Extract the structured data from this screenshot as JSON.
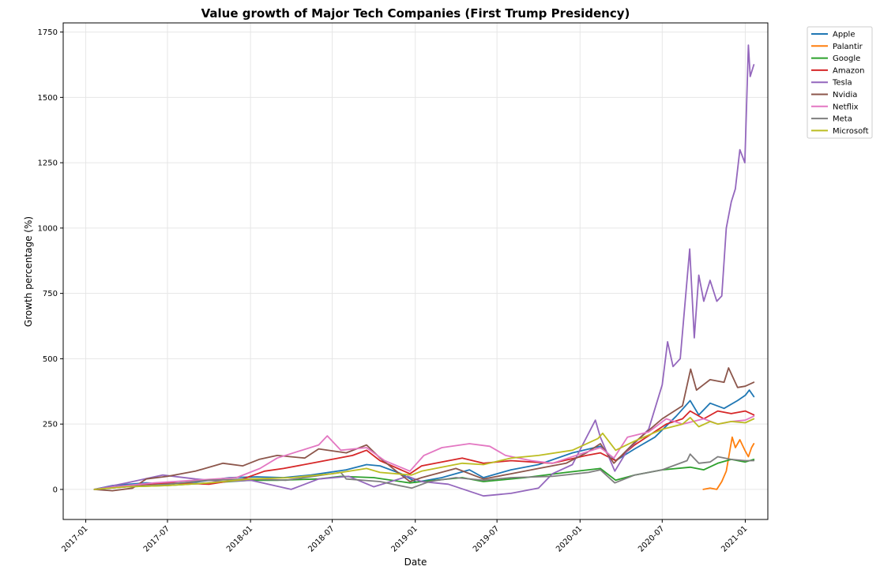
{
  "chart_data": {
    "type": "line",
    "title": "Value growth of Major Tech Companies (First Trump Presidency)",
    "xlabel": "Date",
    "ylabel": "Growth percentage (%)",
    "xlim": [
      "2016-11-12",
      "2021-02-20"
    ],
    "ylim": [
      -115,
      1785
    ],
    "x_ticks": [
      "2017-01",
      "2017-07",
      "2018-01",
      "2018-07",
      "2019-01",
      "2019-07",
      "2020-01",
      "2020-07",
      "2021-01"
    ],
    "y_ticks": [
      0,
      250,
      500,
      750,
      1000,
      1250,
      1500,
      1750
    ],
    "grid": true,
    "legend_position": "outside-top-right",
    "series": [
      {
        "name": "Apple",
        "color": "#1f77b4",
        "points": [
          [
            "2017-01-20",
            0
          ],
          [
            "2017-03-01",
            15
          ],
          [
            "2017-05-15",
            25
          ],
          [
            "2017-07-01",
            22
          ],
          [
            "2017-09-01",
            28
          ],
          [
            "2017-11-15",
            45
          ],
          [
            "2018-01-15",
            48
          ],
          [
            "2018-03-15",
            45
          ],
          [
            "2018-05-15",
            55
          ],
          [
            "2018-08-01",
            75
          ],
          [
            "2018-09-15",
            95
          ],
          [
            "2018-10-15",
            90
          ],
          [
            "2018-12-01",
            60
          ],
          [
            "2019-01-03",
            28
          ],
          [
            "2019-03-01",
            45
          ],
          [
            "2019-05-01",
            75
          ],
          [
            "2019-06-01",
            45
          ],
          [
            "2019-08-01",
            75
          ],
          [
            "2019-10-01",
            95
          ],
          [
            "2019-12-15",
            140
          ],
          [
            "2020-02-15",
            165
          ],
          [
            "2020-03-20",
            110
          ],
          [
            "2020-05-01",
            155
          ],
          [
            "2020-06-15",
            200
          ],
          [
            "2020-08-01",
            280
          ],
          [
            "2020-09-01",
            340
          ],
          [
            "2020-09-20",
            285
          ],
          [
            "2020-10-15",
            330
          ],
          [
            "2020-11-15",
            310
          ],
          [
            "2020-12-15",
            340
          ],
          [
            "2021-01-01",
            360
          ],
          [
            "2021-01-10",
            380
          ],
          [
            "2021-01-20",
            355
          ]
        ]
      },
      {
        "name": "Palantir",
        "color": "#ff7f0e",
        "points": [
          [
            "2020-09-30",
            0
          ],
          [
            "2020-10-15",
            5
          ],
          [
            "2020-10-30",
            0
          ],
          [
            "2020-11-10",
            30
          ],
          [
            "2020-11-20",
            70
          ],
          [
            "2020-11-27",
            140
          ],
          [
            "2020-12-03",
            200
          ],
          [
            "2020-12-10",
            160
          ],
          [
            "2020-12-20",
            190
          ],
          [
            "2020-12-31",
            150
          ],
          [
            "2021-01-08",
            125
          ],
          [
            "2021-01-15",
            160
          ],
          [
            "2021-01-20",
            175
          ]
        ]
      },
      {
        "name": "Google",
        "color": "#2ca02c",
        "points": [
          [
            "2017-01-20",
            0
          ],
          [
            "2017-04-01",
            10
          ],
          [
            "2017-07-01",
            15
          ],
          [
            "2017-10-01",
            25
          ],
          [
            "2018-01-01",
            35
          ],
          [
            "2018-03-01",
            35
          ],
          [
            "2018-06-01",
            40
          ],
          [
            "2018-07-20",
            50
          ],
          [
            "2018-10-01",
            45
          ],
          [
            "2018-12-20",
            25
          ],
          [
            "2019-01-15",
            30
          ],
          [
            "2019-04-15",
            45
          ],
          [
            "2019-06-01",
            30
          ],
          [
            "2019-09-01",
            45
          ],
          [
            "2019-12-01",
            65
          ],
          [
            "2020-02-15",
            80
          ],
          [
            "2020-03-20",
            35
          ],
          [
            "2020-05-01",
            55
          ],
          [
            "2020-07-01",
            75
          ],
          [
            "2020-09-01",
            85
          ],
          [
            "2020-10-01",
            75
          ],
          [
            "2020-11-01",
            100
          ],
          [
            "2020-12-01",
            115
          ],
          [
            "2021-01-01",
            105
          ],
          [
            "2021-01-20",
            115
          ]
        ]
      },
      {
        "name": "Amazon",
        "color": "#d62728",
        "points": [
          [
            "2017-01-20",
            0
          ],
          [
            "2017-04-01",
            15
          ],
          [
            "2017-07-01",
            25
          ],
          [
            "2017-10-01",
            20
          ],
          [
            "2017-12-15",
            40
          ],
          [
            "2018-02-01",
            70
          ],
          [
            "2018-03-15",
            80
          ],
          [
            "2018-06-15",
            110
          ],
          [
            "2018-08-15",
            130
          ],
          [
            "2018-09-15",
            150
          ],
          [
            "2018-10-15",
            110
          ],
          [
            "2018-12-20",
            60
          ],
          [
            "2019-01-15",
            90
          ],
          [
            "2019-04-15",
            120
          ],
          [
            "2019-06-01",
            100
          ],
          [
            "2019-08-01",
            110
          ],
          [
            "2019-11-01",
            100
          ],
          [
            "2020-01-15",
            130
          ],
          [
            "2020-02-15",
            140
          ],
          [
            "2020-03-20",
            110
          ],
          [
            "2020-05-01",
            170
          ],
          [
            "2020-07-10",
            250
          ],
          [
            "2020-08-15",
            270
          ],
          [
            "2020-09-01",
            300
          ],
          [
            "2020-10-01",
            270
          ],
          [
            "2020-11-01",
            300
          ],
          [
            "2020-12-01",
            290
          ],
          [
            "2021-01-01",
            300
          ],
          [
            "2021-01-20",
            285
          ]
        ]
      },
      {
        "name": "Tesla",
        "color": "#9467bd",
        "points": [
          [
            "2017-01-20",
            0
          ],
          [
            "2017-04-01",
            25
          ],
          [
            "2017-06-20",
            55
          ],
          [
            "2017-09-01",
            40
          ],
          [
            "2017-11-01",
            30
          ],
          [
            "2018-01-01",
            35
          ],
          [
            "2018-04-01",
            0
          ],
          [
            "2018-06-01",
            40
          ],
          [
            "2018-08-07",
            50
          ],
          [
            "2018-10-01",
            10
          ],
          [
            "2018-12-15",
            50
          ],
          [
            "2019-01-15",
            30
          ],
          [
            "2019-03-15",
            20
          ],
          [
            "2019-06-01",
            -25
          ],
          [
            "2019-08-01",
            -15
          ],
          [
            "2019-10-01",
            5
          ],
          [
            "2019-11-01",
            60
          ],
          [
            "2019-12-15",
            95
          ],
          [
            "2020-02-04",
            265
          ],
          [
            "2020-02-15",
            200
          ],
          [
            "2020-03-18",
            70
          ],
          [
            "2020-04-15",
            150
          ],
          [
            "2020-06-01",
            230
          ],
          [
            "2020-07-01",
            400
          ],
          [
            "2020-07-13",
            565
          ],
          [
            "2020-07-25",
            470
          ],
          [
            "2020-08-10",
            500
          ],
          [
            "2020-08-31",
            920
          ],
          [
            "2020-09-10",
            580
          ],
          [
            "2020-09-20",
            820
          ],
          [
            "2020-10-01",
            720
          ],
          [
            "2020-10-15",
            800
          ],
          [
            "2020-10-30",
            720
          ],
          [
            "2020-11-10",
            740
          ],
          [
            "2020-11-20",
            1000
          ],
          [
            "2020-12-01",
            1100
          ],
          [
            "2020-12-10",
            1150
          ],
          [
            "2020-12-20",
            1300
          ],
          [
            "2020-12-31",
            1250
          ],
          [
            "2021-01-08",
            1700
          ],
          [
            "2021-01-12",
            1580
          ],
          [
            "2021-01-20",
            1625
          ]
        ]
      },
      {
        "name": "Nvidia",
        "color": "#8c564b",
        "points": [
          [
            "2017-01-20",
            0
          ],
          [
            "2017-03-01",
            -5
          ],
          [
            "2017-04-15",
            5
          ],
          [
            "2017-05-15",
            40
          ],
          [
            "2017-07-01",
            50
          ],
          [
            "2017-09-01",
            70
          ],
          [
            "2017-11-01",
            100
          ],
          [
            "2017-12-15",
            90
          ],
          [
            "2018-01-20",
            115
          ],
          [
            "2018-03-01",
            130
          ],
          [
            "2018-05-01",
            120
          ],
          [
            "2018-06-01",
            155
          ],
          [
            "2018-08-01",
            140
          ],
          [
            "2018-09-15",
            170
          ],
          [
            "2018-10-15",
            120
          ],
          [
            "2018-11-20",
            70
          ],
          [
            "2018-12-20",
            30
          ],
          [
            "2019-01-15",
            45
          ],
          [
            "2019-04-01",
            80
          ],
          [
            "2019-06-01",
            40
          ],
          [
            "2019-08-01",
            60
          ],
          [
            "2019-10-01",
            80
          ],
          [
            "2019-12-01",
            100
          ],
          [
            "2020-01-15",
            140
          ],
          [
            "2020-02-15",
            175
          ],
          [
            "2020-03-16",
            100
          ],
          [
            "2020-05-01",
            180
          ],
          [
            "2020-07-01",
            270
          ],
          [
            "2020-08-15",
            320
          ],
          [
            "2020-09-02",
            460
          ],
          [
            "2020-09-15",
            380
          ],
          [
            "2020-10-15",
            420
          ],
          [
            "2020-11-15",
            410
          ],
          [
            "2020-11-25",
            465
          ],
          [
            "2020-12-15",
            390
          ],
          [
            "2021-01-01",
            395
          ],
          [
            "2021-01-20",
            410
          ]
        ]
      },
      {
        "name": "Netflix",
        "color": "#e377c2",
        "points": [
          [
            "2017-01-20",
            0
          ],
          [
            "2017-04-01",
            15
          ],
          [
            "2017-06-01",
            25
          ],
          [
            "2017-09-01",
            35
          ],
          [
            "2017-12-01",
            45
          ],
          [
            "2018-01-22",
            80
          ],
          [
            "2018-03-01",
            120
          ],
          [
            "2018-06-01",
            170
          ],
          [
            "2018-06-20",
            205
          ],
          [
            "2018-07-20",
            150
          ],
          [
            "2018-09-15",
            160
          ],
          [
            "2018-10-25",
            110
          ],
          [
            "2018-12-20",
            70
          ],
          [
            "2019-01-20",
            130
          ],
          [
            "2019-03-01",
            160
          ],
          [
            "2019-05-01",
            175
          ],
          [
            "2019-06-15",
            165
          ],
          [
            "2019-07-20",
            130
          ],
          [
            "2019-09-15",
            110
          ],
          [
            "2019-11-01",
            100
          ],
          [
            "2020-01-01",
            135
          ],
          [
            "2020-02-15",
            160
          ],
          [
            "2020-03-16",
            120
          ],
          [
            "2020-04-15",
            200
          ],
          [
            "2020-06-01",
            220
          ],
          [
            "2020-07-10",
            270
          ],
          [
            "2020-08-15",
            250
          ],
          [
            "2020-10-01",
            270
          ],
          [
            "2020-11-01",
            250
          ],
          [
            "2020-12-01",
            260
          ],
          [
            "2021-01-01",
            265
          ],
          [
            "2021-01-20",
            280
          ]
        ]
      },
      {
        "name": "Meta",
        "color": "#7f7f7f",
        "points": [
          [
            "2017-01-20",
            0
          ],
          [
            "2017-04-01",
            10
          ],
          [
            "2017-07-01",
            20
          ],
          [
            "2017-10-01",
            35
          ],
          [
            "2018-01-01",
            40
          ],
          [
            "2018-03-20",
            35
          ],
          [
            "2018-05-01",
            45
          ],
          [
            "2018-07-20",
            65
          ],
          [
            "2018-08-01",
            40
          ],
          [
            "2018-10-15",
            30
          ],
          [
            "2018-12-24",
            5
          ],
          [
            "2019-02-01",
            30
          ],
          [
            "2019-04-01",
            45
          ],
          [
            "2019-06-01",
            35
          ],
          [
            "2019-08-01",
            45
          ],
          [
            "2019-11-01",
            50
          ],
          [
            "2020-01-20",
            65
          ],
          [
            "2020-02-15",
            75
          ],
          [
            "2020-03-18",
            25
          ],
          [
            "2020-05-01",
            55
          ],
          [
            "2020-07-01",
            75
          ],
          [
            "2020-08-25",
            110
          ],
          [
            "2020-09-01",
            135
          ],
          [
            "2020-09-20",
            100
          ],
          [
            "2020-10-15",
            105
          ],
          [
            "2020-11-01",
            125
          ],
          [
            "2020-12-01",
            115
          ],
          [
            "2021-01-01",
            110
          ],
          [
            "2021-01-20",
            110
          ]
        ]
      },
      {
        "name": "Microsoft",
        "color": "#bcbd22",
        "points": [
          [
            "2017-01-20",
            0
          ],
          [
            "2017-04-01",
            10
          ],
          [
            "2017-07-01",
            15
          ],
          [
            "2017-10-01",
            25
          ],
          [
            "2018-01-01",
            40
          ],
          [
            "2018-04-01",
            45
          ],
          [
            "2018-07-01",
            60
          ],
          [
            "2018-09-15",
            80
          ],
          [
            "2018-10-15",
            65
          ],
          [
            "2018-12-24",
            55
          ],
          [
            "2019-01-15",
            70
          ],
          [
            "2019-04-15",
            100
          ],
          [
            "2019-06-01",
            95
          ],
          [
            "2019-08-01",
            120
          ],
          [
            "2019-10-01",
            130
          ],
          [
            "2019-12-15",
            150
          ],
          [
            "2020-02-10",
            195
          ],
          [
            "2020-02-20",
            215
          ],
          [
            "2020-03-20",
            150
          ],
          [
            "2020-05-01",
            185
          ],
          [
            "2020-07-01",
            230
          ],
          [
            "2020-08-15",
            250
          ],
          [
            "2020-09-01",
            275
          ],
          [
            "2020-09-20",
            240
          ],
          [
            "2020-10-15",
            260
          ],
          [
            "2020-11-01",
            250
          ],
          [
            "2020-12-01",
            260
          ],
          [
            "2021-01-01",
            255
          ],
          [
            "2021-01-20",
            270
          ]
        ]
      }
    ]
  }
}
